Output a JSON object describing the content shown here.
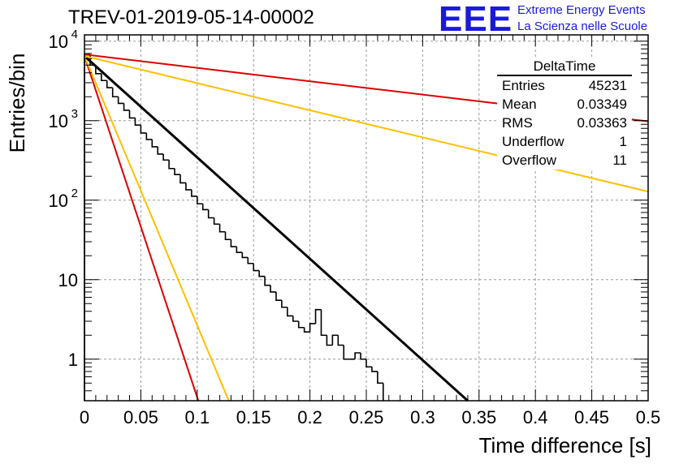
{
  "title": "TREV-01-2019-05-14-00002",
  "logo": {
    "mark": "EEE",
    "line1": "Extreme Energy Events",
    "line2": "La Scienza nelle Scuole"
  },
  "stats": {
    "name": "DeltaTime",
    "rows": [
      {
        "label": "Entries",
        "value": "45231"
      },
      {
        "label": "Mean",
        "value": "0.03349"
      },
      {
        "label": "RMS",
        "value": "0.03363"
      },
      {
        "label": "Underflow",
        "value": "1"
      },
      {
        "label": "Overflow",
        "value": "11"
      }
    ]
  },
  "colors": {
    "histogram": "#000000",
    "fit": "#000000",
    "red": "#dd0000",
    "orange": "#ffbf00",
    "grid": "#9a9a9a"
  },
  "chart_data": {
    "type": "line",
    "title": "TREV-01-2019-05-14-00002",
    "xlabel": "Time difference [s]",
    "ylabel": "Entries/bin",
    "xlim": [
      0,
      0.5
    ],
    "ylim": [
      0.3,
      12000
    ],
    "yscale": "log",
    "grid": true,
    "x_ticks": [
      "0",
      "0.05",
      "0.1",
      "0.15",
      "0.2",
      "0.25",
      "0.3",
      "0.35",
      "0.4",
      "0.45",
      "0.5"
    ],
    "y_ticks": [
      {
        "value": 1,
        "label": "1",
        "exp": ""
      },
      {
        "value": 10,
        "label": "10",
        "exp": ""
      },
      {
        "value": 100,
        "label": "10",
        "exp": "2"
      },
      {
        "value": 1000,
        "label": "10",
        "exp": "3"
      },
      {
        "value": 10000,
        "label": "10",
        "exp": "4"
      }
    ],
    "histogram": {
      "name": "DeltaTime",
      "bin_width": 0.005,
      "x_start": 0,
      "values": [
        6800,
        5000,
        3900,
        3200,
        2600,
        2000,
        1650,
        1350,
        1080,
        880,
        700,
        580,
        470,
        380,
        320,
        250,
        210,
        165,
        135,
        112,
        90,
        76,
        60,
        50,
        40,
        32,
        26,
        22,
        19,
        16,
        13,
        11,
        8.5,
        7,
        5.5,
        4.5,
        3.5,
        3,
        2.5,
        2.2,
        2.8,
        4.2,
        2.0,
        1.5,
        2.0,
        1.5,
        1.0,
        1.0,
        1.2,
        1.0,
        0.8,
        0.7,
        0.5,
        0.3,
        0.3,
        0.3,
        0.3,
        0.3,
        0.3,
        0.3,
        0.3,
        0.3,
        0.3,
        0.3,
        0.3,
        0.3,
        0.3,
        0.3,
        0.3,
        0.3,
        0.3,
        0.3,
        0.3,
        0.3,
        0.3,
        0.3,
        0.3,
        0.3,
        0.3,
        0.3,
        0.3,
        0.3,
        0.3,
        0.3,
        0.3,
        0.3,
        0.3,
        0.3,
        0.3,
        0.3,
        0.3,
        0.3,
        0.3,
        0.3,
        0.3,
        0.3,
        0.3,
        0.3,
        0.3,
        0.3
      ]
    },
    "series": [
      {
        "color": "#000000",
        "x": [
          0,
          0.34
        ],
        "y": [
          6500,
          0.3
        ]
      },
      {
        "color": "#dd0000",
        "x": [
          0,
          0.5
        ],
        "y": [
          6800,
          980
        ]
      },
      {
        "color": "#ffbf00",
        "x": [
          0,
          0.5
        ],
        "y": [
          6500,
          128
        ]
      },
      {
        "color": "#dd0000",
        "x": [
          0,
          0.101
        ],
        "y": [
          6500,
          0.3
        ]
      },
      {
        "color": "#ffbf00",
        "x": [
          0,
          0.128
        ],
        "y": [
          6500,
          0.3
        ]
      }
    ]
  }
}
